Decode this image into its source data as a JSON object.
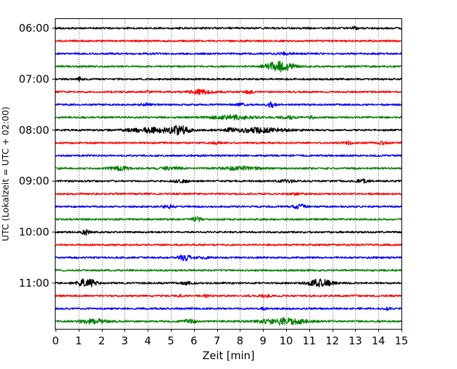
{
  "chart_data": {
    "type": "line",
    "title": "",
    "xlabel": "Zeit  [min]",
    "ylabel": "UTC (Lokalzeit = UTC + 02:00)",
    "xlim": [
      0,
      15
    ],
    "x_ticks": [
      0,
      1,
      2,
      3,
      4,
      5,
      6,
      7,
      8,
      9,
      10,
      11,
      12,
      13,
      14,
      15
    ],
    "x_tick_labels": [
      "0",
      "1",
      "2",
      "3",
      "4",
      "5",
      "6",
      "7",
      "8",
      "9",
      "10",
      "11",
      "12",
      "13",
      "14",
      "15"
    ],
    "y_tick_labels": [
      {
        "label": "06:00",
        "row": 0
      },
      {
        "label": "07:00",
        "row": 4
      },
      {
        "label": "08:00",
        "row": 8
      },
      {
        "label": "09:00",
        "row": 12
      },
      {
        "label": "10:00",
        "row": 16
      },
      {
        "label": "11:00",
        "row": 20
      }
    ],
    "grid": "vertical dotted lines at each minute",
    "row_interval_minutes": 15,
    "color_cycle": [
      "#000000",
      "#ff0000",
      "#0000ff",
      "#008000"
    ],
    "rows": [
      {
        "start": "06:00",
        "events": [
          {
            "t": 13.0,
            "a": 1.3,
            "w": 0.15
          }
        ]
      },
      {
        "start": "06:15",
        "events": []
      },
      {
        "start": "06:30",
        "events": [
          {
            "t": 9.9,
            "a": 1.5,
            "w": 0.3
          }
        ]
      },
      {
        "start": "06:45",
        "events": [
          {
            "t": 9.6,
            "a": 4.2,
            "w": 0.5
          },
          {
            "t": 10.0,
            "a": 2.2,
            "w": 0.4
          }
        ]
      },
      {
        "start": "07:00",
        "events": [
          {
            "t": 1.05,
            "a": 2.0,
            "w": 0.08
          }
        ]
      },
      {
        "start": "07:15",
        "events": [
          {
            "t": 4.0,
            "a": 1.3,
            "w": 0.1
          },
          {
            "t": 6.3,
            "a": 2.0,
            "w": 0.5
          },
          {
            "t": 8.4,
            "a": 1.5,
            "w": 0.15
          }
        ]
      },
      {
        "start": "07:30",
        "events": [
          {
            "t": 3.9,
            "a": 1.6,
            "w": 0.2
          },
          {
            "t": 9.4,
            "a": 2.8,
            "w": 0.2
          },
          {
            "t": 8.1,
            "a": 1.3,
            "w": 0.2
          }
        ]
      },
      {
        "start": "07:45",
        "events": [
          {
            "t": 7.7,
            "a": 2.0,
            "w": 0.9
          },
          {
            "t": 11.1,
            "a": 1.8,
            "w": 0.1
          },
          {
            "t": 10.1,
            "a": 1.3,
            "w": 0.3
          }
        ]
      },
      {
        "start": "08:00",
        "events": [
          {
            "t": 4.3,
            "a": 2.6,
            "w": 1.1
          },
          {
            "t": 5.4,
            "a": 3.5,
            "w": 0.4
          },
          {
            "t": 8.8,
            "a": 2.4,
            "w": 1.2
          },
          {
            "t": 7.6,
            "a": 1.6,
            "w": 0.2
          }
        ]
      },
      {
        "start": "08:15",
        "events": [
          {
            "t": 6.9,
            "a": 1.3,
            "w": 0.2
          },
          {
            "t": 12.7,
            "a": 1.6,
            "w": 0.15
          },
          {
            "t": 14.1,
            "a": 1.2,
            "w": 0.3
          }
        ]
      },
      {
        "start": "08:30",
        "events": []
      },
      {
        "start": "08:45",
        "events": [
          {
            "t": 2.8,
            "a": 1.8,
            "w": 0.5
          },
          {
            "t": 8.0,
            "a": 1.8,
            "w": 0.8
          },
          {
            "t": 5.0,
            "a": 1.3,
            "w": 0.5
          }
        ]
      },
      {
        "start": "09:00",
        "events": [
          {
            "t": 10.0,
            "a": 1.4,
            "w": 0.3
          },
          {
            "t": 13.3,
            "a": 1.5,
            "w": 0.3
          },
          {
            "t": 5.5,
            "a": 1.2,
            "w": 0.4
          }
        ]
      },
      {
        "start": "09:15",
        "events": [
          {
            "t": 10.3,
            "a": 1.2,
            "w": 0.2
          }
        ]
      },
      {
        "start": "09:30",
        "events": [
          {
            "t": 4.9,
            "a": 1.8,
            "w": 0.2
          },
          {
            "t": 10.6,
            "a": 1.8,
            "w": 0.3
          }
        ]
      },
      {
        "start": "09:45",
        "events": [
          {
            "t": 6.1,
            "a": 2.5,
            "w": 0.2
          }
        ]
      },
      {
        "start": "10:00",
        "events": [
          {
            "t": 1.3,
            "a": 2.5,
            "w": 0.15
          }
        ]
      },
      {
        "start": "10:15",
        "events": []
      },
      {
        "start": "10:30",
        "events": [
          {
            "t": 5.6,
            "a": 3.2,
            "w": 0.25
          },
          {
            "t": 6.4,
            "a": 1.2,
            "w": 0.2
          }
        ]
      },
      {
        "start": "10:45",
        "events": []
      },
      {
        "start": "11:00",
        "events": [
          {
            "t": 1.35,
            "a": 4.5,
            "w": 0.4
          },
          {
            "t": 11.5,
            "a": 3.8,
            "w": 0.5
          },
          {
            "t": 5.7,
            "a": 1.2,
            "w": 0.3
          }
        ]
      },
      {
        "start": "11:15",
        "events": [
          {
            "t": 6.55,
            "a": 2.2,
            "w": 0.1
          },
          {
            "t": 5.4,
            "a": 1.3,
            "w": 0.1
          },
          {
            "t": 9.1,
            "a": 1.3,
            "w": 0.2
          }
        ]
      },
      {
        "start": "11:30",
        "events": [
          {
            "t": 14.4,
            "a": 1.4,
            "w": 0.1
          },
          {
            "t": 9.0,
            "a": 1.3,
            "w": 0.1
          }
        ]
      },
      {
        "start": "11:45",
        "events": [
          {
            "t": 1.6,
            "a": 2.3,
            "w": 0.6
          },
          {
            "t": 5.8,
            "a": 1.8,
            "w": 0.3
          },
          {
            "t": 9.9,
            "a": 3.2,
            "w": 1.0
          }
        ]
      }
    ]
  }
}
